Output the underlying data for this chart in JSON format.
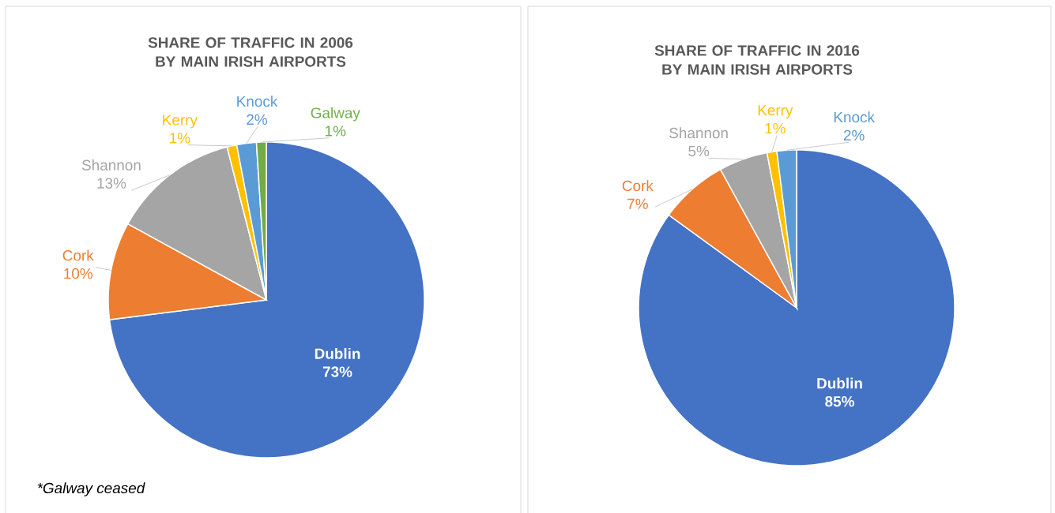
{
  "chart_data": [
    {
      "type": "pie",
      "title": "SHARE OF TRAFFIC IN 2006 BY MAIN IRISH AIRPORTS",
      "categories": [
        "Dublin",
        "Cork",
        "Shannon",
        "Kerry",
        "Knock",
        "Galway"
      ],
      "values": [
        73,
        10,
        13,
        1,
        2,
        1
      ],
      "value_labels": [
        "73%",
        "10%",
        "13%",
        "1%",
        "2%",
        "1%"
      ],
      "colors": [
        "#4472c4",
        "#ed7d31",
        "#a5a5a5",
        "#ffc000",
        "#5b9bd5",
        "#70ad47"
      ],
      "annotations": [
        "*Galway ceased"
      ]
    },
    {
      "type": "pie",
      "title": "SHARE OF TRAFFIC IN 2016 BY MAIN IRISH AIRPORTS",
      "categories": [
        "Dublin",
        "Cork",
        "Shannon",
        "Kerry",
        "Knock"
      ],
      "values": [
        85,
        7,
        5,
        1,
        2
      ],
      "value_labels": [
        "85%",
        "7%",
        "5%",
        "1%",
        "2%"
      ],
      "colors": [
        "#4472c4",
        "#ed7d31",
        "#a5a5a5",
        "#ffc000",
        "#5b9bd5"
      ]
    }
  ]
}
